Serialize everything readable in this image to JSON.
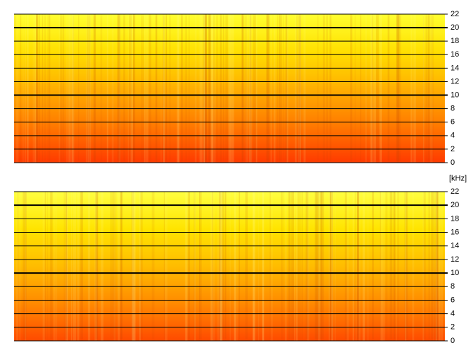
{
  "chart_data": [
    {
      "type": "spectrogram",
      "ylim": [
        0,
        22
      ],
      "yticks": [
        0,
        2,
        4,
        6,
        8,
        10,
        12,
        14,
        16,
        18,
        20,
        22
      ],
      "major_ticks": [
        10,
        20
      ],
      "unit": "[kHz]",
      "colormap": [
        "#ff3a00",
        "#ff7a00",
        "#ffb000",
        "#ffe000",
        "#ffff30"
      ]
    },
    {
      "type": "spectrogram",
      "ylim": [
        0,
        22
      ],
      "yticks": [
        0,
        2,
        4,
        6,
        8,
        10,
        12,
        14,
        16,
        18,
        20,
        22
      ],
      "major_ticks": [
        10,
        20
      ],
      "colormap": [
        "#ff4a00",
        "#ff8a00",
        "#ffbc00",
        "#ffe400",
        "#ffff40"
      ]
    }
  ]
}
